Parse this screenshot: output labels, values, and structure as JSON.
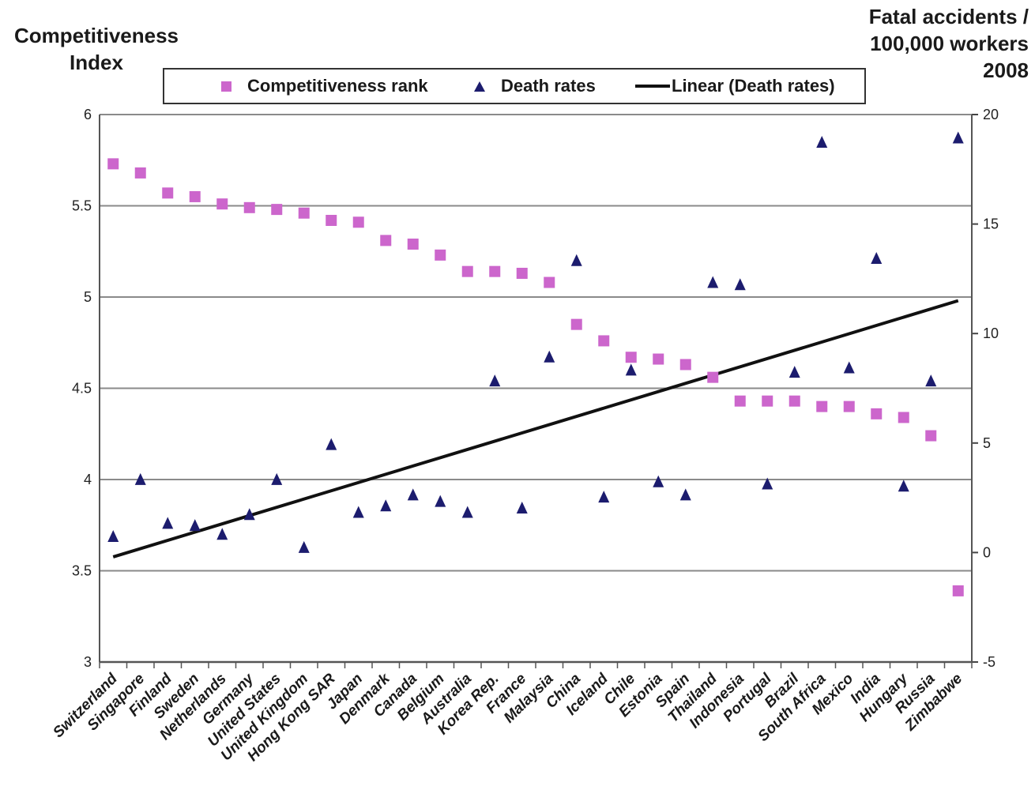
{
  "y_left_title": [
    "Competitiveness",
    "Index"
  ],
  "y_right_title": [
    "Fatal accidents /",
    "100,000 workers",
    "2008"
  ],
  "legend": {
    "competitiveness": "Competitiveness rank",
    "death": "Death rates",
    "linear": "Linear (Death rates)"
  },
  "colors": {
    "competitiveness": "#cc66cc",
    "death": "#1c1c6e",
    "trend": "#111111",
    "grid": "#8a8a8a"
  },
  "chart_data": {
    "type": "scatter",
    "categories": [
      "Switzerland",
      "Singapore",
      "Finland",
      "Sweden",
      "Netherlands",
      "Germany",
      "United States",
      "United Kingdom",
      "Hong Kong SAR",
      "Japan",
      "Denmark",
      "Canada",
      "Belgium",
      "Australia",
      "Korea Rep.",
      "France",
      "Malaysia",
      "China",
      "Iceland",
      "Chile",
      "Estonia",
      "Spain",
      "Thailand",
      "Indonesia",
      "Portugal",
      "Brazil",
      "South Africa",
      "Mexico",
      "India",
      "Hungary",
      "Russia",
      "Zimbabwe"
    ],
    "y_left": {
      "label": "Competitiveness Index",
      "ylim": [
        3,
        6
      ],
      "ticks": [
        3,
        3.5,
        4,
        4.5,
        5,
        5.5,
        6
      ]
    },
    "y_right": {
      "label": "Fatal accidents / 100,000 workers 2008",
      "ylim": [
        -5,
        20
      ],
      "ticks": [
        -5,
        0,
        5,
        10,
        15,
        20
      ]
    },
    "series": [
      {
        "name": "Competitiveness rank",
        "axis": "left",
        "marker": "square",
        "values": [
          5.73,
          5.68,
          5.57,
          5.55,
          5.51,
          5.49,
          5.48,
          5.46,
          5.42,
          5.41,
          5.31,
          5.29,
          5.23,
          5.14,
          5.14,
          5.13,
          5.08,
          4.85,
          4.76,
          4.67,
          4.66,
          4.63,
          4.56,
          4.43,
          4.43,
          4.43,
          4.4,
          4.4,
          4.36,
          4.34,
          4.24,
          3.39
        ]
      },
      {
        "name": "Death rates",
        "axis": "right",
        "marker": "triangle",
        "values": [
          0.7,
          3.3,
          1.3,
          1.2,
          0.8,
          1.7,
          3.3,
          0.2,
          4.9,
          1.8,
          2.1,
          2.6,
          2.3,
          1.8,
          7.8,
          2.0,
          8.9,
          13.3,
          2.5,
          8.3,
          3.2,
          2.6,
          12.3,
          12.2,
          3.1,
          8.2,
          18.7,
          8.4,
          13.4,
          3.0,
          7.8,
          18.9
        ]
      },
      {
        "name": "Linear (Death rates)",
        "axis": "right",
        "type": "line",
        "endpoints": [
          [
            1,
            -0.2
          ],
          [
            32,
            11.5
          ]
        ]
      }
    ],
    "grid": true,
    "legend_position": "top"
  }
}
